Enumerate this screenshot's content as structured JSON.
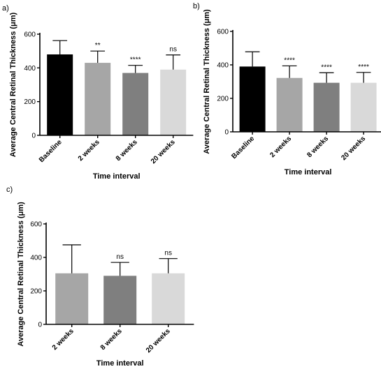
{
  "chart_data": [
    {
      "panel_label": "a)",
      "type": "bar",
      "categories": [
        "Baseline",
        "2 weeks",
        "8 weeks",
        "20 weeks"
      ],
      "values": [
        480,
        430,
        370,
        390
      ],
      "errors": [
        82,
        70,
        45,
        87
      ],
      "colors": [
        "#000000",
        "#a6a6a6",
        "#7f7f7f",
        "#d9d9d9"
      ],
      "annotations": [
        "",
        "**",
        "****",
        "ns"
      ],
      "xlabel": "Time interval",
      "ylabel": "Average Central Retinal Thickness (μm)",
      "ylim": [
        0,
        600
      ],
      "yticks": [
        0,
        200,
        400,
        600
      ]
    },
    {
      "panel_label": "b)",
      "type": "bar",
      "categories": [
        "Baseline",
        "2 weeks",
        "8 weeks",
        "20 weeks"
      ],
      "values": [
        390,
        322,
        293,
        293
      ],
      "errors": [
        88,
        72,
        60,
        62
      ],
      "colors": [
        "#000000",
        "#a6a6a6",
        "#7f7f7f",
        "#d9d9d9"
      ],
      "annotations": [
        "",
        "****",
        "****",
        "****"
      ],
      "xlabel": "Time interval",
      "ylabel": "Average Central Retinal Thickness (μm)",
      "ylim": [
        0,
        600
      ],
      "yticks": [
        0,
        200,
        400,
        600
      ]
    },
    {
      "panel_label": "c)",
      "type": "bar",
      "categories": [
        "2 weeks",
        "8 weeks",
        "20 weeks"
      ],
      "values": [
        305,
        290,
        305
      ],
      "errors": [
        170,
        80,
        88
      ],
      "colors": [
        "#a6a6a6",
        "#7f7f7f",
        "#d9d9d9"
      ],
      "annotations": [
        "",
        "ns",
        "ns"
      ],
      "xlabel": "Time interval",
      "ylabel": "Average Central Retinal Thickness (μm)",
      "ylim": [
        0,
        600
      ],
      "yticks": [
        0,
        200,
        400,
        600
      ]
    }
  ]
}
